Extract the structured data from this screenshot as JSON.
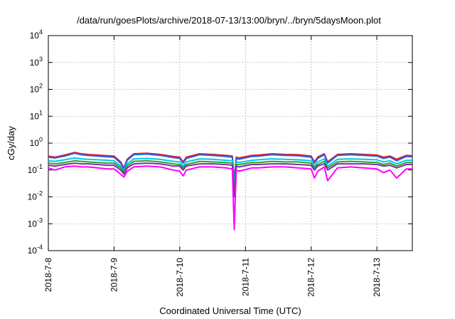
{
  "chart_data": {
    "type": "line",
    "title": "/data/run/goesPlots/archive/2018-07-13/13:00/bryn/../bryn/5daysMoon.plot",
    "xlabel": "Coordinated Universal Time (UTC)",
    "ylabel": "cGy/day",
    "yscale": "log",
    "ylim": [
      0.0001,
      10000
    ],
    "xlim": [
      "2018-07-08 00:00",
      "2018-07-13 13:00"
    ],
    "xticks": [
      "2018-7-8",
      "2018-7-9",
      "2018-7-10",
      "2018-7-11",
      "2018-7-12",
      "2018-7-13"
    ],
    "yticks": [
      {
        "base": "10",
        "exp": "4"
      },
      {
        "base": "10",
        "exp": "3"
      },
      {
        "base": "10",
        "exp": "2"
      },
      {
        "base": "10",
        "exp": "1"
      },
      {
        "base": "10",
        "exp": "0"
      },
      {
        "base": "10",
        "exp": "-1"
      },
      {
        "base": "10",
        "exp": "-2"
      },
      {
        "base": "10",
        "exp": "-3"
      },
      {
        "base": "10",
        "exp": "-4"
      }
    ],
    "grid": true,
    "x_days": [
      0.0,
      0.1,
      0.25,
      0.4,
      0.5,
      0.6,
      0.75,
      0.9,
      1.0,
      1.1,
      1.15,
      1.2,
      1.3,
      1.5,
      1.7,
      1.9,
      2.0,
      2.05,
      2.1,
      2.3,
      2.5,
      2.7,
      2.8,
      2.83,
      2.86,
      2.9,
      3.1,
      3.2,
      3.4,
      3.6,
      3.8,
      4.0,
      4.05,
      4.1,
      4.2,
      4.25,
      4.4,
      4.6,
      4.8,
      5.0,
      5.1,
      5.2,
      5.3,
      5.45,
      5.54
    ],
    "series": [
      {
        "color": "#e31a1c",
        "values": [
          0.33,
          0.3,
          0.36,
          0.45,
          0.4,
          0.38,
          0.36,
          0.34,
          0.33,
          0.2,
          0.12,
          0.25,
          0.4,
          0.42,
          0.38,
          0.32,
          0.3,
          0.2,
          0.3,
          0.4,
          0.38,
          0.35,
          0.33,
          0.04,
          0.3,
          0.28,
          0.35,
          0.36,
          0.4,
          0.38,
          0.37,
          0.33,
          0.2,
          0.3,
          0.4,
          0.2,
          0.38,
          0.4,
          0.38,
          0.36,
          0.3,
          0.33,
          0.25,
          0.35,
          0.34
        ]
      },
      {
        "color": "#2b5fe3",
        "values": [
          0.3,
          0.28,
          0.33,
          0.42,
          0.37,
          0.35,
          0.33,
          0.31,
          0.3,
          0.18,
          0.11,
          0.23,
          0.37,
          0.39,
          0.35,
          0.29,
          0.27,
          0.18,
          0.27,
          0.37,
          0.35,
          0.32,
          0.3,
          0.035,
          0.27,
          0.25,
          0.32,
          0.33,
          0.37,
          0.35,
          0.34,
          0.3,
          0.18,
          0.27,
          0.37,
          0.18,
          0.35,
          0.37,
          0.35,
          0.33,
          0.27,
          0.3,
          0.22,
          0.32,
          0.31
        ]
      },
      {
        "color": "#00c8e6",
        "values": [
          0.22,
          0.21,
          0.24,
          0.28,
          0.26,
          0.25,
          0.24,
          0.23,
          0.22,
          0.14,
          0.09,
          0.17,
          0.26,
          0.27,
          0.25,
          0.21,
          0.2,
          0.14,
          0.2,
          0.26,
          0.25,
          0.23,
          0.22,
          0.02,
          0.2,
          0.19,
          0.23,
          0.24,
          0.26,
          0.25,
          0.24,
          0.22,
          0.14,
          0.2,
          0.26,
          0.14,
          0.25,
          0.26,
          0.25,
          0.24,
          0.2,
          0.22,
          0.17,
          0.23,
          0.23
        ]
      },
      {
        "color": "#2ca02c",
        "values": [
          0.18,
          0.17,
          0.19,
          0.22,
          0.21,
          0.2,
          0.19,
          0.18,
          0.18,
          0.12,
          0.08,
          0.14,
          0.21,
          0.22,
          0.2,
          0.17,
          0.16,
          0.12,
          0.16,
          0.21,
          0.2,
          0.19,
          0.18,
          0.015,
          0.16,
          0.16,
          0.19,
          0.19,
          0.21,
          0.2,
          0.2,
          0.18,
          0.12,
          0.16,
          0.21,
          0.12,
          0.2,
          0.21,
          0.2,
          0.19,
          0.16,
          0.18,
          0.14,
          0.19,
          0.19
        ]
      },
      {
        "color": "#7b2fa8",
        "values": [
          0.15,
          0.14,
          0.16,
          0.18,
          0.17,
          0.17,
          0.16,
          0.15,
          0.15,
          0.1,
          0.07,
          0.12,
          0.17,
          0.18,
          0.17,
          0.14,
          0.14,
          0.1,
          0.14,
          0.17,
          0.17,
          0.16,
          0.15,
          0.01,
          0.14,
          0.13,
          0.16,
          0.16,
          0.17,
          0.17,
          0.16,
          0.15,
          0.1,
          0.14,
          0.17,
          0.1,
          0.17,
          0.17,
          0.17,
          0.16,
          0.14,
          0.15,
          0.12,
          0.16,
          0.16
        ]
      },
      {
        "color": "#ff00ff",
        "values": [
          0.12,
          0.1,
          0.13,
          0.14,
          0.13,
          0.13,
          0.12,
          0.11,
          0.11,
          0.07,
          0.055,
          0.09,
          0.13,
          0.14,
          0.13,
          0.1,
          0.09,
          0.06,
          0.1,
          0.13,
          0.13,
          0.12,
          0.11,
          0.0006,
          0.1,
          0.09,
          0.12,
          0.12,
          0.13,
          0.13,
          0.12,
          0.11,
          0.05,
          0.09,
          0.13,
          0.04,
          0.12,
          0.13,
          0.12,
          0.11,
          0.08,
          0.1,
          0.05,
          0.11,
          0.11
        ]
      }
    ]
  }
}
